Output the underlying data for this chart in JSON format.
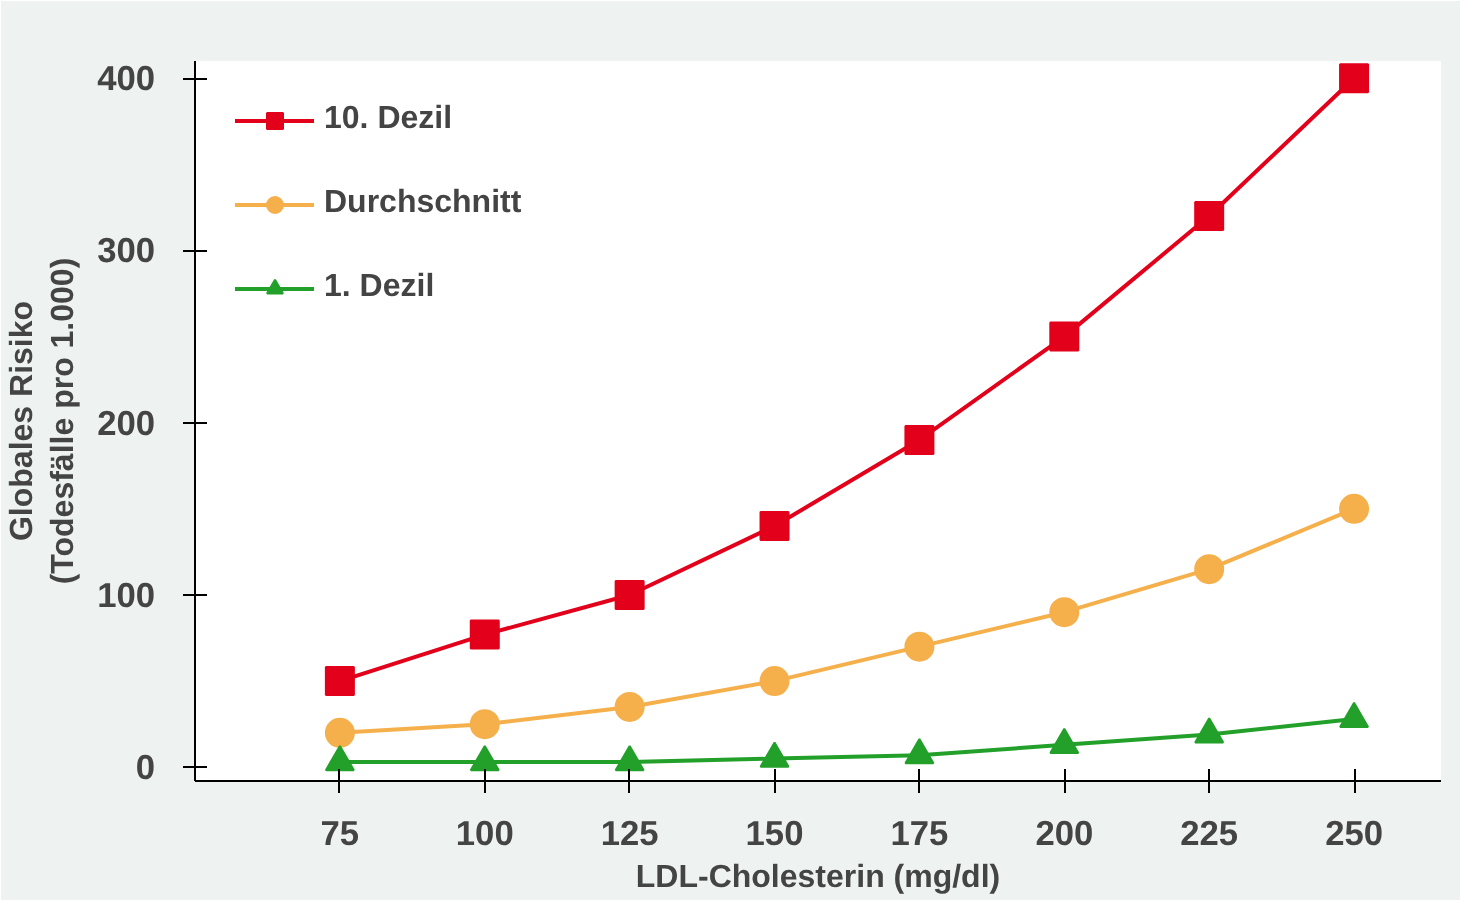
{
  "chart_data": {
    "type": "line",
    "xlabel": "LDL-Cholesterin (mg/dl)",
    "ylabel": "Globales Risiko\n(Todesfälle pro 1.000)",
    "x": [
      75,
      100,
      125,
      150,
      175,
      200,
      225,
      250
    ],
    "xlim": [
      50,
      265
    ],
    "ylim": [
      -8,
      410
    ],
    "xticks": [
      75,
      100,
      125,
      150,
      175,
      200,
      225,
      250
    ],
    "yticks": [
      0,
      100,
      200,
      300,
      400
    ],
    "grid": false,
    "legend": "top left",
    "line_style": "solid",
    "series": [
      {
        "name": "10. Dezil",
        "color": "#e2001a",
        "marker": "square",
        "values": [
          50,
          77,
          100,
          140,
          190,
          250,
          320,
          400
        ]
      },
      {
        "name": "Durchschnitt",
        "color": "#f5b04c",
        "marker": "circle",
        "values": [
          20,
          25,
          35,
          50,
          70,
          90,
          115,
          150
        ]
      },
      {
        "name": "1. Dezil",
        "color": "#22a02a",
        "marker": "triangle",
        "values": [
          3,
          3,
          3,
          5,
          7,
          13,
          19,
          28
        ]
      }
    ]
  }
}
